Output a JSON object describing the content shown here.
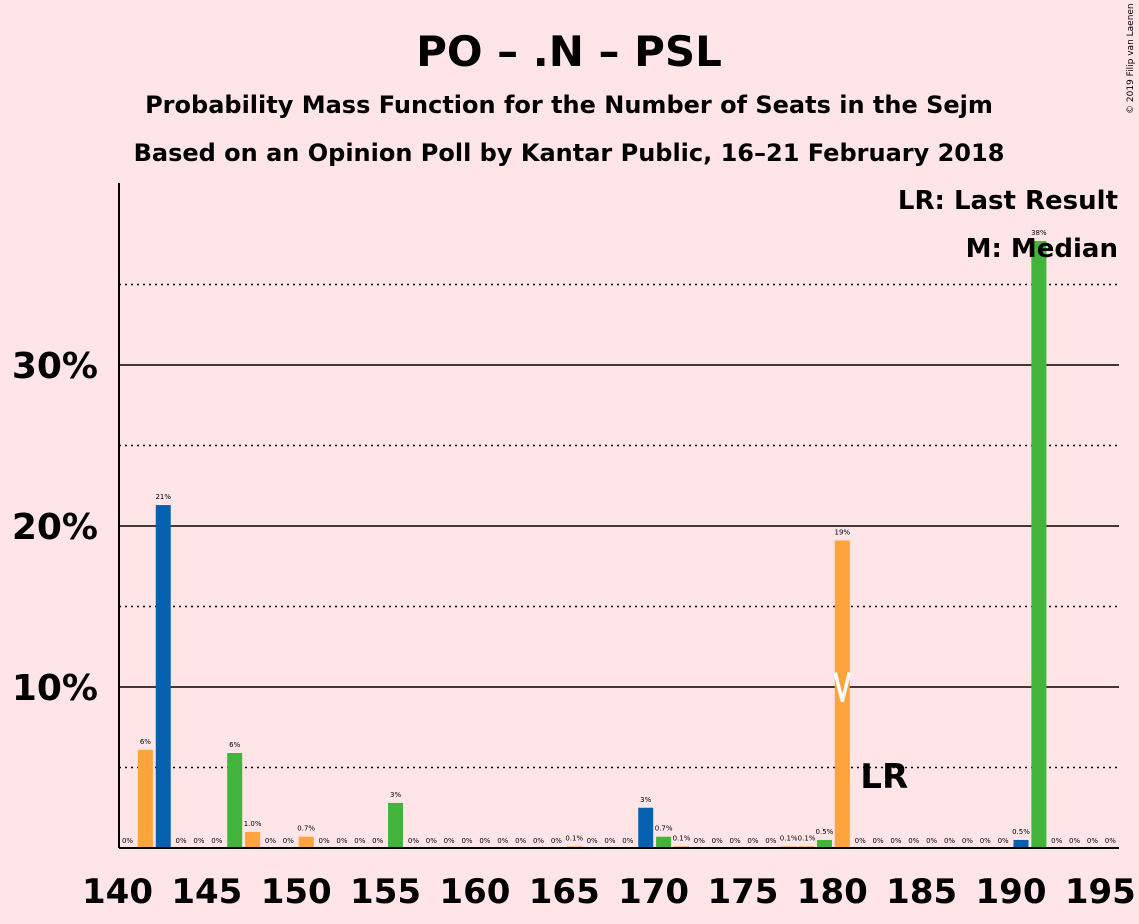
{
  "chart_data": {
    "type": "bar",
    "title": "PO – .N – PSL",
    "subtitle": "Probability Mass Function for the Number of Seats in the Sejm",
    "subtitle2": "Based on an Opinion Poll by Kantar Public, 16–21 February 2018",
    "copyright": "© 2019 Filip van Laenen",
    "legend": {
      "lr": "LR: Last Result",
      "m": "M: Median",
      "placement": "top-right"
    },
    "lr_marker_label": "LR",
    "last_result_seat": 180,
    "median_seat": 191,
    "x_ticks": [
      140,
      145,
      150,
      155,
      160,
      165,
      170,
      175,
      180,
      185,
      190,
      195
    ],
    "y_ticks": [
      {
        "value": 10,
        "label": "10%"
      },
      {
        "value": 20,
        "label": "20%"
      },
      {
        "value": 30,
        "label": "30%"
      }
    ],
    "y_dotted": [
      5,
      15,
      25,
      35
    ],
    "xlim": [
      140,
      195
    ],
    "ylim": [
      0,
      41
    ],
    "colors": {
      "background": "#FFE4E8",
      "orange": "#FFA33D",
      "blue": "#0560B0",
      "green": "#42B43C",
      "median_marker": "#FFFFFF"
    },
    "bars": [
      {
        "x": 140,
        "value": 0,
        "label": "0%",
        "color": "orange"
      },
      {
        "x": 141,
        "value": 6.1,
        "label": "6%",
        "color": "orange"
      },
      {
        "x": 142,
        "value": 21.3,
        "label": "21%",
        "color": "blue"
      },
      {
        "x": 143,
        "value": 0,
        "label": "0%",
        "color": "orange"
      },
      {
        "x": 144,
        "value": 0,
        "label": "0%",
        "color": "orange"
      },
      {
        "x": 145,
        "value": 0,
        "label": "0%",
        "color": "orange"
      },
      {
        "x": 146,
        "value": 5.9,
        "label": "6%",
        "color": "green"
      },
      {
        "x": 147,
        "value": 1.0,
        "label": "1.0%",
        "color": "orange"
      },
      {
        "x": 148,
        "value": 0,
        "label": "0%",
        "color": "orange"
      },
      {
        "x": 149,
        "value": 0,
        "label": "0%",
        "color": "orange"
      },
      {
        "x": 150,
        "value": 0.7,
        "label": "0.7%",
        "color": "orange"
      },
      {
        "x": 151,
        "value": 0,
        "label": "0%",
        "color": "orange"
      },
      {
        "x": 152,
        "value": 0,
        "label": "0%",
        "color": "orange"
      },
      {
        "x": 153,
        "value": 0,
        "label": "0%",
        "color": "orange"
      },
      {
        "x": 154,
        "value": 0,
        "label": "0%",
        "color": "orange"
      },
      {
        "x": 155,
        "value": 2.8,
        "label": "3%",
        "color": "green"
      },
      {
        "x": 156,
        "value": 0,
        "label": "0%",
        "color": "orange"
      },
      {
        "x": 157,
        "value": 0,
        "label": "0%",
        "color": "orange"
      },
      {
        "x": 158,
        "value": 0,
        "label": "0%",
        "color": "orange"
      },
      {
        "x": 159,
        "value": 0,
        "label": "0%",
        "color": "orange"
      },
      {
        "x": 160,
        "value": 0,
        "label": "0%",
        "color": "orange"
      },
      {
        "x": 161,
        "value": 0,
        "label": "0%",
        "color": "orange"
      },
      {
        "x": 162,
        "value": 0,
        "label": "0%",
        "color": "orange"
      },
      {
        "x": 163,
        "value": 0,
        "label": "0%",
        "color": "orange"
      },
      {
        "x": 164,
        "value": 0,
        "label": "0%",
        "color": "orange"
      },
      {
        "x": 165,
        "value": 0.1,
        "label": "0.1%",
        "color": "orange"
      },
      {
        "x": 166,
        "value": 0,
        "label": "0%",
        "color": "orange"
      },
      {
        "x": 167,
        "value": 0,
        "label": "0%",
        "color": "orange"
      },
      {
        "x": 168,
        "value": 0,
        "label": "0%",
        "color": "orange"
      },
      {
        "x": 169,
        "value": 2.5,
        "label": "3%",
        "color": "blue"
      },
      {
        "x": 170,
        "value": 0.7,
        "label": "0.7%",
        "color": "green"
      },
      {
        "x": 171,
        "value": 0.1,
        "label": "0.1%",
        "color": "orange"
      },
      {
        "x": 172,
        "value": 0,
        "label": "0%",
        "color": "orange"
      },
      {
        "x": 173,
        "value": 0,
        "label": "0%",
        "color": "orange"
      },
      {
        "x": 174,
        "value": 0,
        "label": "0%",
        "color": "orange"
      },
      {
        "x": 175,
        "value": 0,
        "label": "0%",
        "color": "orange"
      },
      {
        "x": 176,
        "value": 0,
        "label": "0%",
        "color": "orange"
      },
      {
        "x": 177,
        "value": 0.1,
        "label": "0.1%",
        "color": "orange"
      },
      {
        "x": 178,
        "value": 0.1,
        "label": "0.1%",
        "color": "orange"
      },
      {
        "x": 179,
        "value": 0.5,
        "label": "0.5%",
        "color": "green"
      },
      {
        "x": 180,
        "value": 19.1,
        "label": "19%",
        "color": "orange"
      },
      {
        "x": 181,
        "value": 0,
        "label": "0%",
        "color": "orange"
      },
      {
        "x": 182,
        "value": 0,
        "label": "0%",
        "color": "orange"
      },
      {
        "x": 183,
        "value": 0,
        "label": "0%",
        "color": "orange"
      },
      {
        "x": 184,
        "value": 0,
        "label": "0%",
        "color": "orange"
      },
      {
        "x": 185,
        "value": 0,
        "label": "0%",
        "color": "orange"
      },
      {
        "x": 186,
        "value": 0,
        "label": "0%",
        "color": "orange"
      },
      {
        "x": 187,
        "value": 0,
        "label": "0%",
        "color": "orange"
      },
      {
        "x": 188,
        "value": 0,
        "label": "0%",
        "color": "orange"
      },
      {
        "x": 189,
        "value": 0,
        "label": "0%",
        "color": "orange"
      },
      {
        "x": 190,
        "value": 0.5,
        "label": "0.5%",
        "color": "blue"
      },
      {
        "x": 191,
        "value": 37.7,
        "label": "38%",
        "color": "green"
      },
      {
        "x": 192,
        "value": 0,
        "label": "0%",
        "color": "orange"
      },
      {
        "x": 193,
        "value": 0,
        "label": "0%",
        "color": "orange"
      },
      {
        "x": 194,
        "value": 0,
        "label": "0%",
        "color": "orange"
      },
      {
        "x": 195,
        "value": 0,
        "label": "0%",
        "color": "orange"
      }
    ]
  }
}
